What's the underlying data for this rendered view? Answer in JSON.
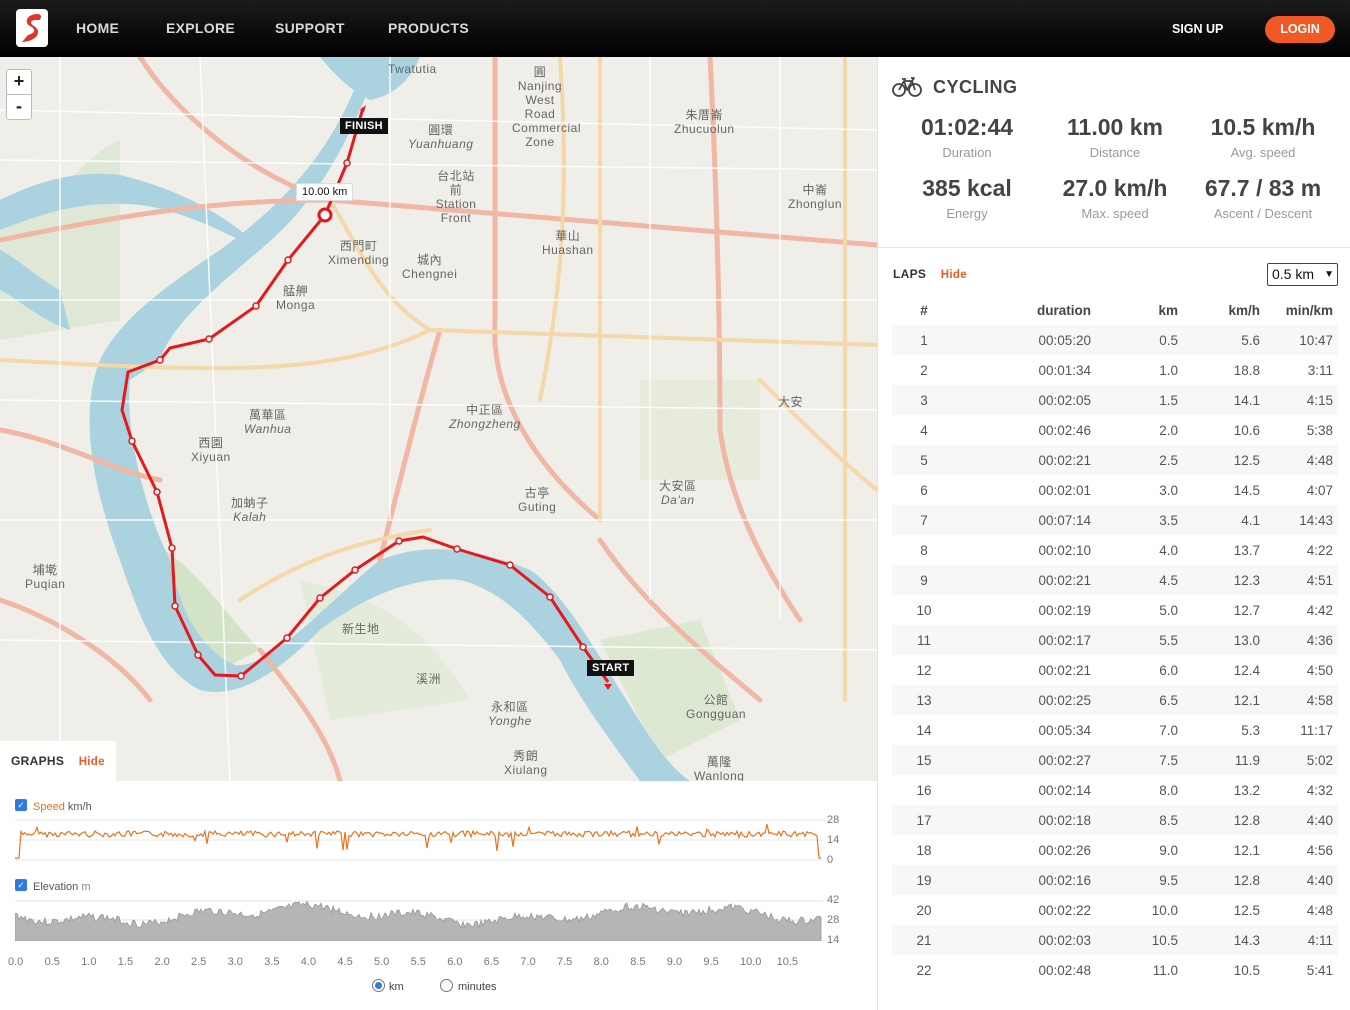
{
  "nav": {
    "links": [
      "HOME",
      "EXPLORE",
      "SUPPORT",
      "PRODUCTS"
    ],
    "signup": "SIGN UP",
    "login": "LOGIN",
    "brand_color": "#f15a24"
  },
  "map": {
    "zoom_in": "+",
    "zoom_out": "-",
    "finish_label": "FINISH",
    "start_label": "START",
    "distance_marker": "10.00 km",
    "places": [
      {
        "zh": "",
        "en": "Twatutia"
      },
      {
        "zh": "圓",
        "en": "Nanjing West Road Commercial Zone"
      },
      {
        "zh": "朱厝崙",
        "en": "Zhucuolun"
      },
      {
        "zh": "圓環",
        "en": "Yuanhuang"
      },
      {
        "zh": "台北站 前",
        "en": "Station Front"
      },
      {
        "zh": "中崙",
        "en": "Zhonglun"
      },
      {
        "zh": "華山",
        "en": "Huashan"
      },
      {
        "zh": "西門町",
        "en": "Ximending"
      },
      {
        "zh": "城內",
        "en": "Chengnei"
      },
      {
        "zh": "艋舺",
        "en": "Monga"
      },
      {
        "zh": "萬華區",
        "en": "Wanhua"
      },
      {
        "zh": "中正區",
        "en": "Zhongzheng"
      },
      {
        "zh": "大安",
        "en": ""
      },
      {
        "zh": "西園",
        "en": "Xiyuan"
      },
      {
        "zh": "加蚋子",
        "en": "Kalah"
      },
      {
        "zh": "大安區",
        "en": "Da'an"
      },
      {
        "zh": "古亭",
        "en": "Guting"
      },
      {
        "zh": "埔墘",
        "en": "Puqian"
      },
      {
        "zh": "新生地",
        "en": ""
      },
      {
        "zh": "溪洲",
        "en": ""
      },
      {
        "zh": "永和區",
        "en": "Yonghe"
      },
      {
        "zh": "公館",
        "en": "Gongguan"
      },
      {
        "zh": "秀朗",
        "en": "Xiulang"
      },
      {
        "zh": "萬隆",
        "en": "Wanlong"
      }
    ]
  },
  "graphs": {
    "title": "GRAPHS",
    "hide": "Hide",
    "speed": {
      "name": "Speed",
      "unit": "km/h",
      "ticks": [
        "28",
        "14",
        "0"
      ],
      "color": "#e8731f"
    },
    "elevation": {
      "name": "Elevation",
      "unit": "m",
      "ticks": [
        "42",
        "28",
        "14"
      ],
      "color": "#999999"
    },
    "x_ticks": [
      "0.0",
      "0.5",
      "1.0",
      "1.5",
      "2.0",
      "2.5",
      "3.0",
      "3.5",
      "4.0",
      "4.5",
      "5.0",
      "5.5",
      "6.0",
      "6.5",
      "7.0",
      "7.5",
      "8.0",
      "8.5",
      "9.0",
      "9.5",
      "10.0",
      "10.5"
    ],
    "unit_km": "km",
    "unit_minutes": "minutes",
    "selected_unit": "km"
  },
  "activity": {
    "type": "CYCLING",
    "stats": [
      {
        "value": "01:02:44",
        "label": "Duration"
      },
      {
        "value": "11.00 km",
        "label": "Distance"
      },
      {
        "value": "10.5 km/h",
        "label": "Avg. speed"
      },
      {
        "value": "385 kcal",
        "label": "Energy"
      },
      {
        "value": "27.0 km/h",
        "label": "Max. speed"
      },
      {
        "value": "67.7 / 83 m",
        "label": "Ascent / Descent"
      }
    ]
  },
  "laps": {
    "title": "LAPS",
    "hide": "Hide",
    "interval": "0.5 km",
    "columns": [
      "#",
      "duration",
      "km",
      "km/h",
      "min/km"
    ],
    "rows": [
      [
        "1",
        "00:05:20",
        "0.5",
        "5.6",
        "10:47"
      ],
      [
        "2",
        "00:01:34",
        "1.0",
        "18.8",
        "3:11"
      ],
      [
        "3",
        "00:02:05",
        "1.5",
        "14.1",
        "4:15"
      ],
      [
        "4",
        "00:02:46",
        "2.0",
        "10.6",
        "5:38"
      ],
      [
        "5",
        "00:02:21",
        "2.5",
        "12.5",
        "4:48"
      ],
      [
        "6",
        "00:02:01",
        "3.0",
        "14.5",
        "4:07"
      ],
      [
        "7",
        "00:07:14",
        "3.5",
        "4.1",
        "14:43"
      ],
      [
        "8",
        "00:02:10",
        "4.0",
        "13.7",
        "4:22"
      ],
      [
        "9",
        "00:02:21",
        "4.5",
        "12.3",
        "4:51"
      ],
      [
        "10",
        "00:02:19",
        "5.0",
        "12.7",
        "4:42"
      ],
      [
        "11",
        "00:02:17",
        "5.5",
        "13.0",
        "4:36"
      ],
      [
        "12",
        "00:02:21",
        "6.0",
        "12.4",
        "4:50"
      ],
      [
        "13",
        "00:02:25",
        "6.5",
        "12.1",
        "4:58"
      ],
      [
        "14",
        "00:05:34",
        "7.0",
        "5.3",
        "11:17"
      ],
      [
        "15",
        "00:02:27",
        "7.5",
        "11.9",
        "5:02"
      ],
      [
        "16",
        "00:02:14",
        "8.0",
        "13.2",
        "4:32"
      ],
      [
        "17",
        "00:02:18",
        "8.5",
        "12.8",
        "4:40"
      ],
      [
        "18",
        "00:02:26",
        "9.0",
        "12.1",
        "4:56"
      ],
      [
        "19",
        "00:02:16",
        "9.5",
        "12.8",
        "4:40"
      ],
      [
        "20",
        "00:02:22",
        "10.0",
        "12.5",
        "4:48"
      ],
      [
        "21",
        "00:02:03",
        "10.5",
        "14.3",
        "4:11"
      ],
      [
        "22",
        "00:02:48",
        "11.0",
        "10.5",
        "5:41"
      ]
    ]
  }
}
